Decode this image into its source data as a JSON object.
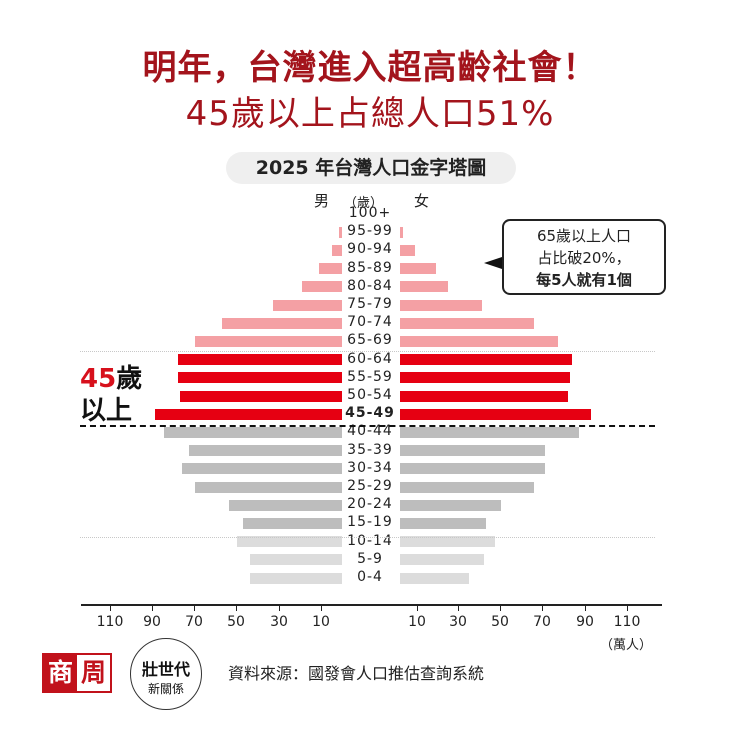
{
  "headline": {
    "line1": "明年，台灣進入超高齡社會！",
    "line2": "45歲以上占總人口51%"
  },
  "chart_title": "2025 年台灣人口金字塔圖",
  "labels": {
    "male": "男",
    "age": "（歲）",
    "female": "女",
    "unit": "（萬人）"
  },
  "callout": {
    "line1": "65歲以上人口",
    "line2": "占比破20%，",
    "line3": "每5人就有1個"
  },
  "side_label": {
    "num": "45",
    "suffix": "歲",
    "line2": "以上"
  },
  "source": "資料來源：國發會人口推估查詢系統",
  "logos": {
    "shang": "商",
    "zhou": "周",
    "circle_line1": "壯世代",
    "circle_line2": "新關係"
  },
  "colors": {
    "title": "#a3141c",
    "age65plus": "#f4a0a4",
    "age45to64": "#e60012",
    "age15to44": "#bdbdbd",
    "age0to14": "#dcdcdc"
  },
  "chart_data": {
    "type": "bar",
    "subtype": "population-pyramid",
    "title": "2025 年台灣人口金字塔圖",
    "xlabel": "（萬人）",
    "ylabel": "（歲）",
    "xlim": [
      -120,
      120
    ],
    "x_ticks": [
      110,
      90,
      70,
      50,
      30,
      10,
      10,
      30,
      50,
      70,
      90,
      110
    ],
    "categories": [
      "100+",
      "95-99",
      "90-94",
      "85-89",
      "80-84",
      "75-79",
      "70-74",
      "65-69",
      "60-64",
      "55-59",
      "50-54",
      "45-49",
      "40-44",
      "35-39",
      "30-34",
      "25-29",
      "20-24",
      "15-19",
      "10-14",
      "5-9",
      "0-4"
    ],
    "series": [
      {
        "name": "男",
        "values": [
          0.2,
          1.5,
          5,
          11,
          19,
          33,
          57,
          70,
          78,
          78,
          77,
          89,
          85,
          73,
          76,
          70,
          54,
          47,
          50,
          44,
          44
        ]
      },
      {
        "name": "女",
        "values": [
          0.4,
          1.5,
          7,
          17,
          23,
          39,
          64,
          75,
          82,
          81,
          80,
          91,
          85,
          69,
          69,
          64,
          48,
          41,
          45,
          40,
          33
        ]
      }
    ],
    "groups": [
      {
        "name": "65+",
        "color": "#f4a0a4"
      },
      {
        "name": "45-64",
        "color": "#e60012"
      },
      {
        "name": "15-44",
        "color": "#bdbdbd"
      },
      {
        "name": "0-14",
        "color": "#dcdcdc"
      }
    ],
    "annotations": [
      "65歲以上人口占比破20%，每5人就有1個",
      "45歲以上"
    ]
  }
}
